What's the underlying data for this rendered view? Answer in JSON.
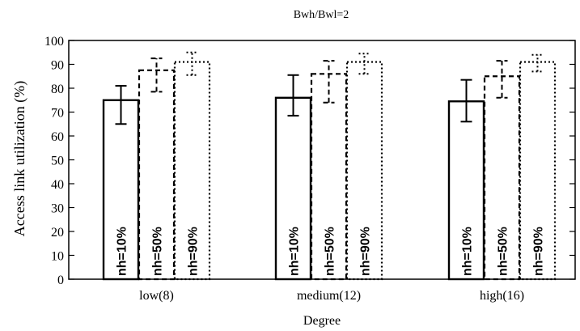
{
  "chart_data": {
    "type": "bar",
    "title": "Bwh/Bwl=2",
    "xlabel": "Degree",
    "ylabel": "Access link utilization (%)",
    "ylim": [
      0,
      100
    ],
    "yticks": [
      0,
      10,
      20,
      30,
      40,
      50,
      60,
      70,
      80,
      90,
      100
    ],
    "grid": false,
    "legend": "none",
    "categories": [
      "low(8)",
      "medium(12)",
      "high(16)"
    ],
    "series": [
      {
        "name": "nh=10%",
        "line_style": "solid",
        "values": [
          75,
          76,
          74.5
        ],
        "error": [
          [
            65,
            81
          ],
          [
            68.5,
            85.5
          ],
          [
            66,
            83.5
          ]
        ]
      },
      {
        "name": "nh=50%",
        "line_style": "dashed",
        "values": [
          87.5,
          86,
          85
        ],
        "error": [
          [
            78.5,
            92.5
          ],
          [
            74,
            91.5
          ],
          [
            76,
            91.5
          ]
        ]
      },
      {
        "name": "nh=90%",
        "line_style": "dotted",
        "values": [
          91,
          91,
          91
        ],
        "error": [
          [
            85.5,
            95
          ],
          [
            86,
            94.5
          ],
          [
            87,
            94
          ]
        ]
      }
    ]
  }
}
